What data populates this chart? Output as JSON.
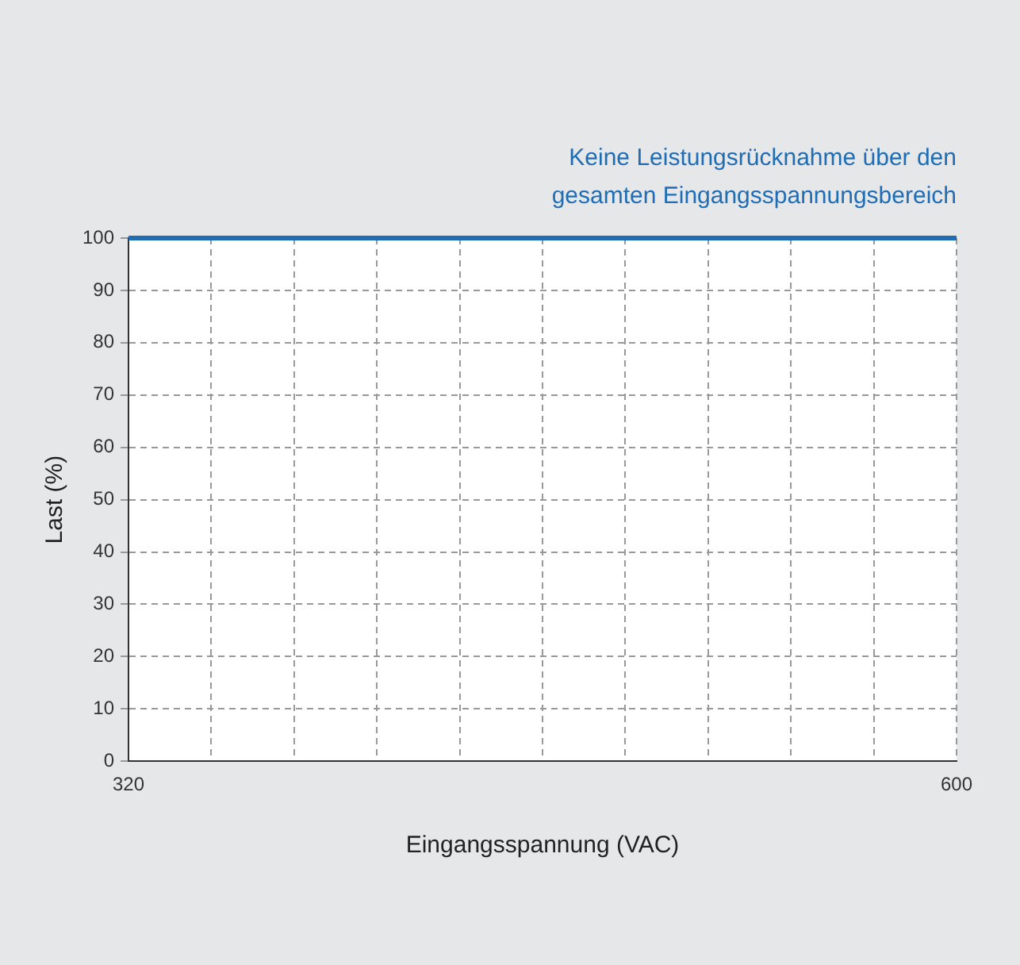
{
  "chart_data": {
    "type": "line",
    "annotations": [
      "Keine Leistungsrücknahme über den gesamten Eingangsspannungsbereich"
    ],
    "xlabel": "Eingangsspannung (VAC)",
    "ylabel": "Last (%)",
    "x": [
      320,
      600
    ],
    "series": [
      {
        "color": "#1f6db5",
        "values": [
          100,
          100
        ]
      }
    ],
    "xlim": [
      320,
      600
    ],
    "xticks": [
      320,
      {
        "value": 348,
        "label": null
      },
      {
        "value": 376,
        "label": null
      },
      {
        "value": 404,
        "label": null
      },
      {
        "value": 432,
        "label": null
      },
      {
        "value": 460,
        "label": null
      },
      {
        "value": 488,
        "label": null
      },
      {
        "value": 516,
        "label": null
      },
      {
        "value": 544,
        "label": null
      },
      {
        "value": 572,
        "label": null
      },
      600
    ],
    "ylim": [
      0,
      100
    ],
    "yticks": [
      0,
      10,
      20,
      30,
      40,
      50,
      60,
      70,
      80,
      90,
      100
    ],
    "grid": true,
    "legend": false,
    "marker": "none",
    "line_style": "solid"
  }
}
